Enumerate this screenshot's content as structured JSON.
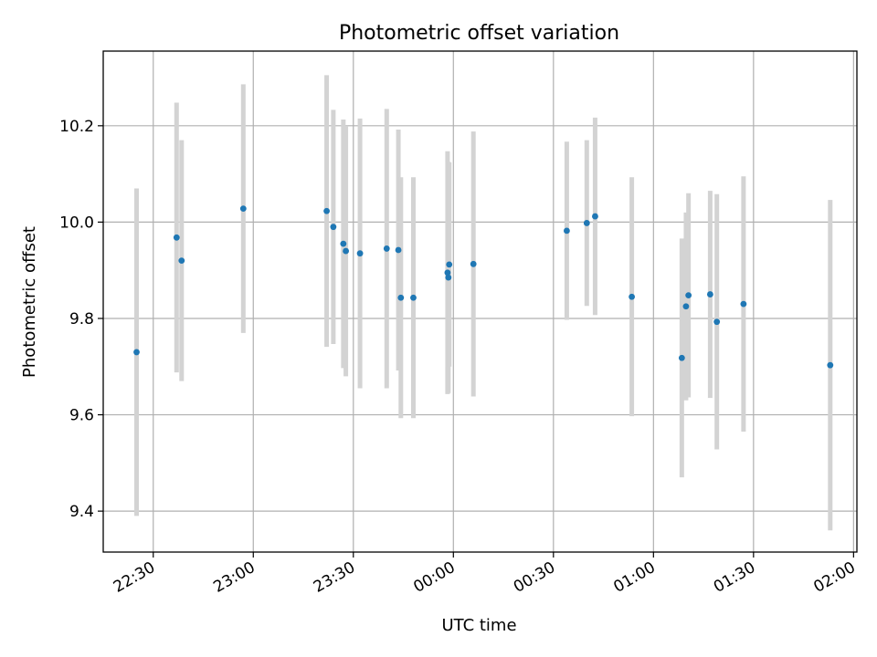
{
  "chart_data": {
    "type": "scatter",
    "title": "Photometric offset variation",
    "xlabel": "UTC time",
    "ylabel": "Photometric offset",
    "grid": true,
    "x_ticks": [
      {
        "t": "22:30",
        "label": "22:30"
      },
      {
        "t": "23:00",
        "label": "23:00"
      },
      {
        "t": "23:30",
        "label": "23:30"
      },
      {
        "t": "00:00",
        "label": "00:00"
      },
      {
        "t": "00:30",
        "label": "00:30"
      },
      {
        "t": "01:00",
        "label": "01:00"
      },
      {
        "t": "01:30",
        "label": "01:30"
      },
      {
        "t": "02:00",
        "label": "02:00"
      }
    ],
    "y_ticks": [
      "9.4",
      "9.6",
      "9.8",
      "10.0",
      "10.2"
    ],
    "xlim": [
      "22:15:00",
      "02:01:00"
    ],
    "ylim": [
      9.315,
      10.355
    ],
    "colors": {
      "point": "#1f77b4",
      "errorbar": "#d3d3d3",
      "grid": "#b0b0b0"
    },
    "points": [
      {
        "t": "22:25:00",
        "y": 9.73,
        "err": 0.34
      },
      {
        "t": "22:37:00",
        "y": 9.968,
        "err": 0.28
      },
      {
        "t": "22:38:30",
        "y": 9.92,
        "err": 0.25
      },
      {
        "t": "22:57:00",
        "y": 10.028,
        "err": 0.258
      },
      {
        "t": "23:22:00",
        "y": 10.023,
        "err": 0.282
      },
      {
        "t": "23:24:00",
        "y": 9.99,
        "err": 0.243
      },
      {
        "t": "23:27:00",
        "y": 9.955,
        "err": 0.258
      },
      {
        "t": "23:27:45",
        "y": 9.94,
        "err": 0.26
      },
      {
        "t": "23:32:00",
        "y": 9.935,
        "err": 0.28
      },
      {
        "t": "23:40:00",
        "y": 9.945,
        "err": 0.29
      },
      {
        "t": "23:43:30",
        "y": 9.942,
        "err": 0.25
      },
      {
        "t": "23:44:15",
        "y": 9.843,
        "err": 0.25
      },
      {
        "t": "23:48:00",
        "y": 9.843,
        "err": 0.25
      },
      {
        "t": "23:58:15",
        "y": 9.895,
        "err": 0.252
      },
      {
        "t": "23:58:30",
        "y": 9.885,
        "err": 0.24
      },
      {
        "t": "23:58:45",
        "y": 9.912,
        "err": 0.212
      },
      {
        "t": "00:06:00",
        "y": 9.913,
        "err": 0.275
      },
      {
        "t": "00:34:00",
        "y": 9.982,
        "err": 0.185
      },
      {
        "t": "00:40:00",
        "y": 9.998,
        "err": 0.172
      },
      {
        "t": "00:42:30",
        "y": 10.012,
        "err": 0.205
      },
      {
        "t": "00:53:30",
        "y": 9.845,
        "err": 0.248
      },
      {
        "t": "01:08:30",
        "y": 9.718,
        "err": 0.248
      },
      {
        "t": "01:09:45",
        "y": 9.825,
        "err": 0.195
      },
      {
        "t": "01:10:30",
        "y": 9.848,
        "err": 0.212
      },
      {
        "t": "01:17:00",
        "y": 9.85,
        "err": 0.215
      },
      {
        "t": "01:19:00",
        "y": 9.793,
        "err": 0.265
      },
      {
        "t": "01:27:00",
        "y": 9.83,
        "err": 0.265
      },
      {
        "t": "01:53:00",
        "y": 9.703,
        "err": 0.343
      }
    ]
  }
}
